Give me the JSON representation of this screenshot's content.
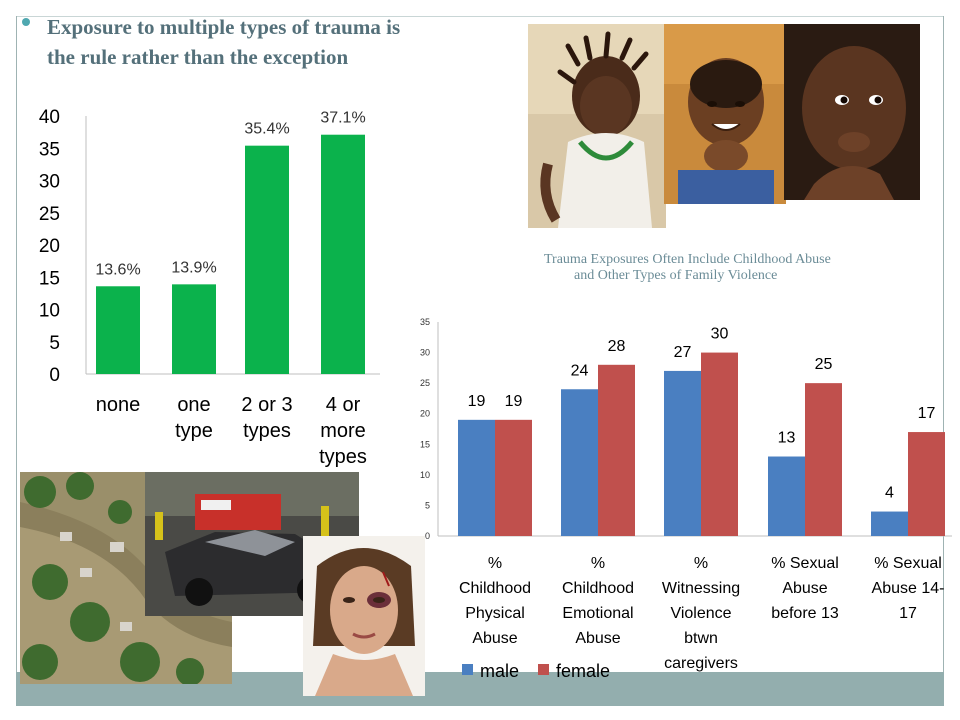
{
  "slide": {
    "heading": "Exposure to multiple types of trauma is the rule rather than the exception",
    "subtitle_line1": "Trauma Exposures Often Include Childhood Abuse",
    "subtitle_line2": "and Other Types of  Family Violence"
  },
  "photos": [
    {
      "name": "photo-girl-with-braids",
      "depicts": "child-portrait"
    },
    {
      "name": "photo-smiling-boy",
      "depicts": "child-portrait"
    },
    {
      "name": "photo-toddler",
      "depicts": "child-portrait"
    },
    {
      "name": "photo-flood-aerial",
      "depicts": "flooded-neighborhood"
    },
    {
      "name": "photo-car-crash",
      "depicts": "car-accident-scene"
    },
    {
      "name": "photo-bruised-woman",
      "depicts": "injured-woman-portrait"
    }
  ],
  "colors": {
    "accent_green": "#0bb24c",
    "male": "#4a7fc1",
    "female": "#c0504d",
    "heading": "#54707a",
    "footer_band": "#93aeae"
  },
  "chart_data": [
    {
      "type": "bar",
      "title": "",
      "xlabel": "",
      "ylabel": "",
      "categories": [
        [
          "none"
        ],
        [
          "one",
          "type"
        ],
        [
          "2 or 3",
          "types"
        ],
        [
          "4 or",
          "more",
          "types"
        ]
      ],
      "values": [
        13.6,
        13.9,
        35.4,
        37.1
      ],
      "data_labels": [
        "13.6%",
        "13.9%",
        "35.4%",
        "37.1%"
      ],
      "ylim": [
        0,
        40
      ],
      "yticks": [
        0,
        5,
        10,
        15,
        20,
        25,
        30,
        35,
        40
      ],
      "grid": false,
      "legend": "none"
    },
    {
      "type": "bar",
      "title": "",
      "xlabel": "",
      "ylabel": "",
      "categories": [
        [
          "%",
          "Childhood",
          "Physical",
          "Abuse"
        ],
        [
          "%",
          "Childhood",
          "Emotional",
          "Abuse"
        ],
        [
          "%",
          "Witnessing",
          "Violence",
          "btwn",
          "caregivers"
        ],
        [
          "% Sexual",
          "Abuse",
          "before 13"
        ],
        [
          "% Sexual",
          "Abuse 14-",
          "17"
        ]
      ],
      "series": [
        {
          "name": "male",
          "values": [
            19,
            24,
            27,
            13,
            4
          ]
        },
        {
          "name": "female",
          "values": [
            19,
            28,
            30,
            25,
            17
          ]
        }
      ],
      "ylim": [
        0,
        35
      ],
      "yticks": [
        0,
        5,
        10,
        15,
        20,
        25,
        30,
        35
      ],
      "grid": false,
      "legend": "bottom-left"
    }
  ]
}
